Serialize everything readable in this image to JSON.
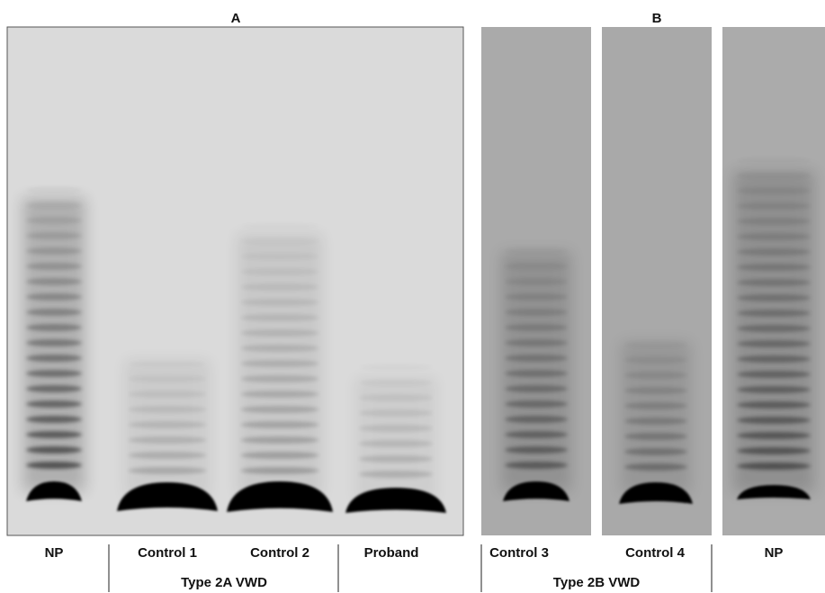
{
  "panels": [
    {
      "title": "A",
      "lanes": [
        "NP",
        "Control 1",
        "Control 2",
        "Proband"
      ],
      "group": "Type 2A VWD"
    },
    {
      "title": "B",
      "lanes": [
        "Control 3",
        "Control 4",
        "NP"
      ],
      "group": "Type 2B VWD"
    }
  ]
}
